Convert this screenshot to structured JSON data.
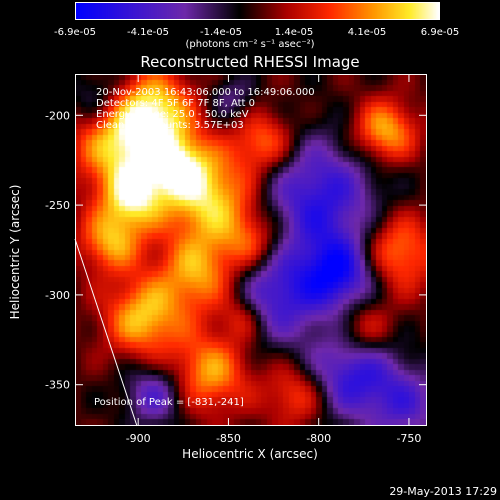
{
  "colorbar": {
    "ticks": [
      "-6.9e-05",
      "-4.1e-05",
      "-1.4e-05",
      "1.4e-05",
      "4.1e-05",
      "6.9e-05"
    ],
    "units": "(photons cm⁻² s⁻¹ asec⁻²)"
  },
  "chart_data": {
    "type": "heatmap",
    "title": "Reconstructed RHESSI Image",
    "xlabel": "Heliocentric X (arcsec)",
    "ylabel": "Heliocentric Y (arcsec)",
    "xlim": [
      -935,
      -740
    ],
    "ylim": [
      -373,
      -177
    ],
    "xticks": [
      -900,
      -850,
      -800,
      -750
    ],
    "yticks": [
      -200,
      -250,
      -300,
      -350
    ],
    "zlim": [
      -6.9e-05,
      6.9e-05
    ],
    "colormap": "blue-purple-black-red-orange-yellow-white",
    "peak": [
      -831,
      -241
    ]
  },
  "info": {
    "time_range": "20-Nov-2003 16:43:06.000 to 16:49:06.000",
    "detectors": "Detectors: 4F 5F 6F 7F 8F, Att 0",
    "energy_range": "Energy Range: 25.0 - 50.0 keV",
    "clean": "Clean    Total counts: 3.57E+03",
    "peak_position": "Position of Peak = [-831,-241]"
  },
  "footer": {
    "timestamp": "29-May-2013 17:29"
  },
  "colors": {
    "background": "#000000",
    "foreground": "#ffffff",
    "limb_line": "#ffffff"
  }
}
